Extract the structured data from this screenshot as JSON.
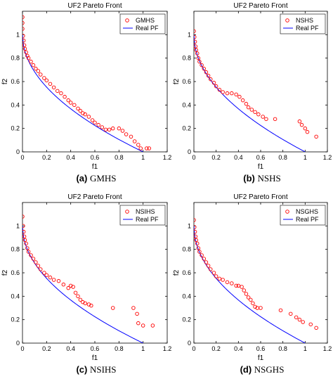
{
  "accent": {
    "points": "#ff0000",
    "curve": "#0000ff"
  },
  "chart_data": [
    {
      "type": "scatter",
      "title": "UF2 Pareto Front",
      "xlabel": "f1",
      "ylabel": "f2",
      "xlim": [
        0,
        1.2
      ],
      "ylim": [
        0,
        1.2
      ],
      "xticks": [
        "0",
        "0.2",
        "0.4",
        "0.6",
        "0.8",
        "1",
        "1.2"
      ],
      "yticks": [
        "0",
        "0.2",
        "0.4",
        "0.6",
        "0.8",
        "1"
      ],
      "legend": "top-right",
      "caption_letter": "(a)",
      "caption_name": "GMHS",
      "series": [
        {
          "name": "GMHS",
          "marker": "circle",
          "color": "#ff0000",
          "points": [
            [
              0,
              1.15
            ],
            [
              0,
              1.1
            ],
            [
              0,
              1.05
            ],
            [
              0.005,
              0.99
            ],
            [
              0.01,
              0.95
            ],
            [
              0.015,
              0.91
            ],
            [
              0.02,
              0.88
            ],
            [
              0.03,
              0.85
            ],
            [
              0.04,
              0.82
            ],
            [
              0.05,
              0.8
            ],
            [
              0.07,
              0.77
            ],
            [
              0.09,
              0.74
            ],
            [
              0.11,
              0.71
            ],
            [
              0.13,
              0.69
            ],
            [
              0.15,
              0.66
            ],
            [
              0.18,
              0.63
            ],
            [
              0.2,
              0.61
            ],
            [
              0.23,
              0.58
            ],
            [
              0.26,
              0.55
            ],
            [
              0.29,
              0.52
            ],
            [
              0.32,
              0.5
            ],
            [
              0.35,
              0.47
            ],
            [
              0.38,
              0.44
            ],
            [
              0.4,
              0.42
            ],
            [
              0.43,
              0.4
            ],
            [
              0.46,
              0.37
            ],
            [
              0.48,
              0.35
            ],
            [
              0.5,
              0.33
            ],
            [
              0.52,
              0.32
            ],
            [
              0.55,
              0.3
            ],
            [
              0.58,
              0.27
            ],
            [
              0.6,
              0.25
            ],
            [
              0.63,
              0.23
            ],
            [
              0.66,
              0.21
            ],
            [
              0.69,
              0.19
            ],
            [
              0.72,
              0.19
            ],
            [
              0.75,
              0.2
            ],
            [
              0.8,
              0.2
            ],
            [
              0.83,
              0.18
            ],
            [
              0.86,
              0.15
            ],
            [
              0.9,
              0.13
            ],
            [
              0.93,
              0.09
            ],
            [
              0.96,
              0.06
            ],
            [
              0.98,
              0.03
            ],
            [
              1.03,
              0.03
            ],
            [
              1.05,
              0.03
            ]
          ]
        },
        {
          "name": "Real PF",
          "line": true,
          "color": "#0000ff"
        }
      ]
    },
    {
      "type": "scatter",
      "title": "UF2 Pareto Front",
      "xlabel": "f1",
      "ylabel": "f2",
      "xlim": [
        0,
        1.2
      ],
      "ylim": [
        0,
        1.2
      ],
      "xticks": [
        "0",
        "0.2",
        "0.4",
        "0.6",
        "0.8",
        "1",
        "1.2"
      ],
      "yticks": [
        "0",
        "0.2",
        "0.4",
        "0.6",
        "0.8",
        "1"
      ],
      "legend": "top-right",
      "caption_letter": "(b)",
      "caption_name": "NSHS",
      "series": [
        {
          "name": "NSHS",
          "marker": "circle",
          "color": "#ff0000",
          "points": [
            [
              0,
              1.03
            ],
            [
              0.005,
              0.98
            ],
            [
              0.01,
              0.94
            ],
            [
              0.015,
              0.9
            ],
            [
              0.02,
              0.87
            ],
            [
              0.03,
              0.84
            ],
            [
              0.04,
              0.8
            ],
            [
              0.05,
              0.77
            ],
            [
              0.07,
              0.74
            ],
            [
              0.09,
              0.71
            ],
            [
              0.11,
              0.68
            ],
            [
              0.13,
              0.65
            ],
            [
              0.15,
              0.62
            ],
            [
              0.18,
              0.59
            ],
            [
              0.2,
              0.56
            ],
            [
              0.23,
              0.53
            ],
            [
              0.26,
              0.51
            ],
            [
              0.3,
              0.5
            ],
            [
              0.34,
              0.5
            ],
            [
              0.38,
              0.49
            ],
            [
              0.41,
              0.47
            ],
            [
              0.44,
              0.44
            ],
            [
              0.47,
              0.41
            ],
            [
              0.49,
              0.38
            ],
            [
              0.52,
              0.36
            ],
            [
              0.55,
              0.34
            ],
            [
              0.58,
              0.32
            ],
            [
              0.62,
              0.3
            ],
            [
              0.65,
              0.28
            ],
            [
              0.73,
              0.28
            ],
            [
              0.95,
              0.26
            ],
            [
              0.97,
              0.23
            ],
            [
              1.0,
              0.2
            ],
            [
              1.02,
              0.17
            ],
            [
              1.1,
              0.13
            ]
          ]
        },
        {
          "name": "Real PF",
          "line": true,
          "color": "#0000ff"
        }
      ]
    },
    {
      "type": "scatter",
      "title": "UF2 Pareto Front",
      "xlabel": "f1",
      "ylabel": "f2",
      "xlim": [
        0,
        1.2
      ],
      "ylim": [
        0,
        1.2
      ],
      "xticks": [
        "0",
        "0.2",
        "0.4",
        "0.6",
        "0.8",
        "1",
        "1.2"
      ],
      "yticks": [
        "0",
        "0.2",
        "0.4",
        "0.6",
        "0.8",
        "1"
      ],
      "legend": "top-right",
      "caption_letter": "(c)",
      "caption_name": "NSIHS",
      "series": [
        {
          "name": "NSIHS",
          "marker": "circle",
          "color": "#ff0000",
          "points": [
            [
              0,
              1.08
            ],
            [
              0.005,
              1.0
            ],
            [
              0.01,
              0.95
            ],
            [
              0.015,
              0.91
            ],
            [
              0.02,
              0.88
            ],
            [
              0.03,
              0.85
            ],
            [
              0.04,
              0.81
            ],
            [
              0.05,
              0.78
            ],
            [
              0.07,
              0.75
            ],
            [
              0.09,
              0.72
            ],
            [
              0.11,
              0.69
            ],
            [
              0.13,
              0.66
            ],
            [
              0.15,
              0.63
            ],
            [
              0.18,
              0.6
            ],
            [
              0.2,
              0.58
            ],
            [
              0.23,
              0.56
            ],
            [
              0.26,
              0.54
            ],
            [
              0.3,
              0.53
            ],
            [
              0.34,
              0.5
            ],
            [
              0.38,
              0.47
            ],
            [
              0.4,
              0.49
            ],
            [
              0.42,
              0.48
            ],
            [
              0.44,
              0.43
            ],
            [
              0.46,
              0.4
            ],
            [
              0.48,
              0.37
            ],
            [
              0.5,
              0.35
            ],
            [
              0.52,
              0.34
            ],
            [
              0.55,
              0.33
            ],
            [
              0.57,
              0.32
            ],
            [
              0.75,
              0.3
            ],
            [
              0.92,
              0.3
            ],
            [
              0.95,
              0.25
            ],
            [
              0.96,
              0.17
            ],
            [
              1.0,
              0.15
            ],
            [
              1.08,
              0.15
            ]
          ]
        },
        {
          "name": "Real PF",
          "line": true,
          "color": "#0000ff"
        }
      ]
    },
    {
      "type": "scatter",
      "title": "UF2 Pareto Front",
      "xlabel": "f1",
      "ylabel": "f2",
      "xlim": [
        0,
        1.2
      ],
      "ylim": [
        0,
        1.2
      ],
      "xticks": [
        "0",
        "0.2",
        "0.4",
        "0.6",
        "0.8",
        "1",
        "1.2"
      ],
      "yticks": [
        "0",
        "0.2",
        "0.4",
        "0.6",
        "0.8",
        "1"
      ],
      "legend": "top-right",
      "caption_letter": "(d)",
      "caption_name": "NSGHS",
      "series": [
        {
          "name": "NSGHS",
          "marker": "circle",
          "color": "#ff0000",
          "points": [
            [
              0,
              1.05
            ],
            [
              0.005,
              0.99
            ],
            [
              0.01,
              0.95
            ],
            [
              0.015,
              0.91
            ],
            [
              0.02,
              0.88
            ],
            [
              0.03,
              0.85
            ],
            [
              0.04,
              0.81
            ],
            [
              0.05,
              0.78
            ],
            [
              0.07,
              0.75
            ],
            [
              0.09,
              0.72
            ],
            [
              0.11,
              0.69
            ],
            [
              0.13,
              0.66
            ],
            [
              0.15,
              0.63
            ],
            [
              0.18,
              0.6
            ],
            [
              0.2,
              0.57
            ],
            [
              0.23,
              0.55
            ],
            [
              0.26,
              0.54
            ],
            [
              0.3,
              0.52
            ],
            [
              0.34,
              0.51
            ],
            [
              0.38,
              0.49
            ],
            [
              0.4,
              0.49
            ],
            [
              0.43,
              0.48
            ],
            [
              0.45,
              0.45
            ],
            [
              0.47,
              0.42
            ],
            [
              0.49,
              0.39
            ],
            [
              0.51,
              0.37
            ],
            [
              0.53,
              0.34
            ],
            [
              0.55,
              0.31
            ],
            [
              0.57,
              0.3
            ],
            [
              0.6,
              0.3
            ],
            [
              0.78,
              0.28
            ],
            [
              0.87,
              0.25
            ],
            [
              0.92,
              0.22
            ],
            [
              0.95,
              0.2
            ],
            [
              0.98,
              0.18
            ],
            [
              1.05,
              0.16
            ],
            [
              1.1,
              0.13
            ]
          ]
        },
        {
          "name": "Real PF",
          "line": true,
          "color": "#0000ff"
        }
      ]
    }
  ]
}
